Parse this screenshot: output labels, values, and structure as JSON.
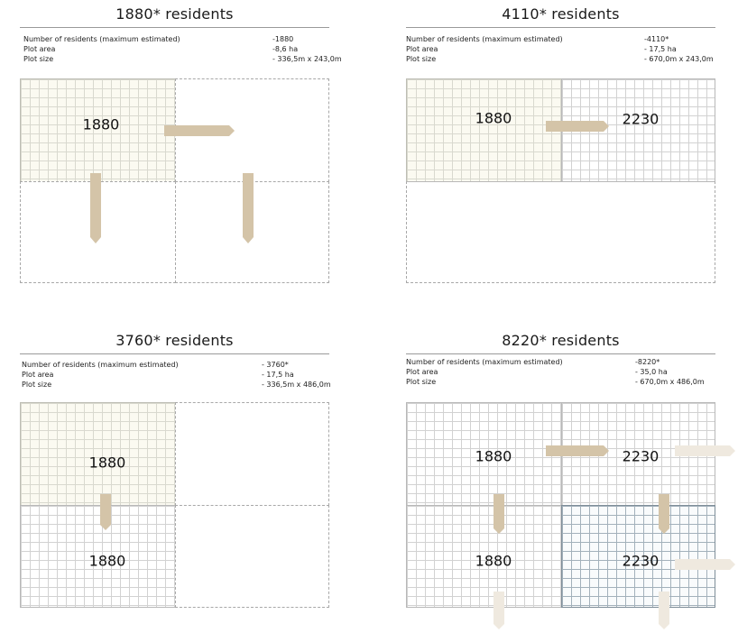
{
  "panels": [
    {
      "title": "1880* residents",
      "info": [
        {
          "label": "Number of residents (maximum estimated)",
          "value": "-1880"
        },
        {
          "label": "Plot area",
          "value": "-8,6 ha"
        },
        {
          "label": "Plot size",
          "value": "- 336,5m x 243,0m"
        }
      ],
      "numbers": [
        "1880"
      ]
    },
    {
      "title": "4110* residents",
      "info": [
        {
          "label": "Number of residents (maximum estimated)",
          "value": "-4110*"
        },
        {
          "label": "Plot area",
          "value": "- 17,5 ha"
        },
        {
          "label": "Plot size",
          "value": "- 670,0m x 243,0m"
        }
      ],
      "numbers": [
        "1880",
        "2230"
      ]
    },
    {
      "title": "3760* residents",
      "info": [
        {
          "label": "Number of residents (maximum estimated)",
          "value": "- 3760*"
        },
        {
          "label": "Plot area",
          "value": "- 17,5 ha"
        },
        {
          "label": "Plot size",
          "value": "- 336,5m x 486,0m"
        }
      ],
      "numbers": [
        "1880",
        "1880"
      ]
    },
    {
      "title": "8220* residents",
      "info": [
        {
          "label": "Number of residents (maximum estimated)",
          "value": "-8220*"
        },
        {
          "label": "Plot area",
          "value": "- 35,0 ha"
        },
        {
          "label": "Plot size",
          "value": "- 670,0m x 486,0m"
        }
      ],
      "numbers": [
        "1880",
        "2230",
        "1880",
        "2230"
      ]
    }
  ],
  "colors": {
    "arrow": "#d4c4a8",
    "arrow_faded": "#efe9df"
  }
}
